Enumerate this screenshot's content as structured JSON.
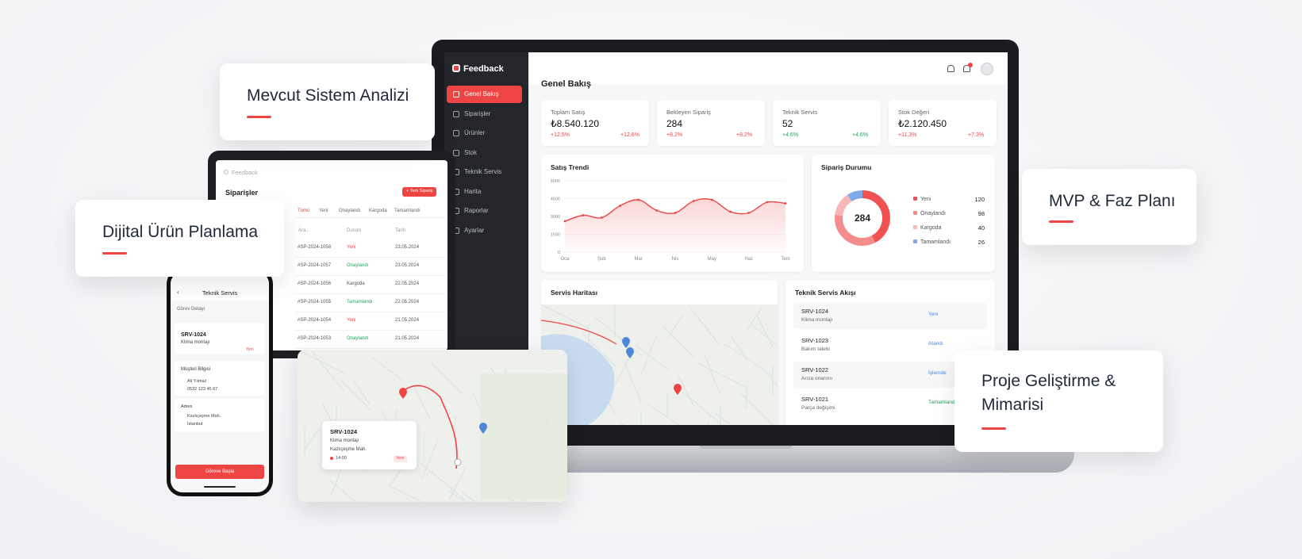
{
  "cards": [
    "Mevcut Sistem Analizi",
    "Dijital Ürün Planlama",
    "MVP & Faz Planı",
    "Proje Geliştirme & Mimarisi"
  ],
  "laptop": {
    "brand": "Feedback",
    "nav": [
      "Genel Bakış",
      "Siparişler",
      "Ürünler",
      "Stok",
      "Teknik Servis",
      "Harita",
      "Raporlar",
      "Ayarlar"
    ],
    "page_title": "Genel Bakış",
    "kpis": [
      {
        "label": "Toplam Satış",
        "value": "₺8.540.120",
        "change": "+12.5%",
        "change_right": "+12.6%",
        "color": "#ef4444"
      },
      {
        "label": "Bekleyen Sipariş",
        "value": "284",
        "change": "+8.2%",
        "change_right": "+8.2%",
        "color": "#ef4444"
      },
      {
        "label": "Teknik Servis",
        "value": "52",
        "change": "+4.6%",
        "change_right": "+4.6%",
        "color": "#22a35a"
      },
      {
        "label": "Stok Değeri",
        "value": "₺2.120.450",
        "change": "+11.3%",
        "change_right": "+7.3%",
        "color": "#ef4444"
      }
    ],
    "sales_trend": {
      "type": "line",
      "title": "Satış Trendi",
      "categories": [
        "Oca",
        null,
        "Şub",
        null,
        "Mar",
        null,
        "Nis",
        null,
        "May",
        null,
        "Haz",
        null,
        "Tem"
      ],
      "values": [
        2600,
        3100,
        2900,
        3900,
        4400,
        3500,
        3300,
        4300,
        4400,
        3400,
        3300,
        4200,
        4100
      ],
      "color": "#ef4444",
      "ylim": [
        0,
        6000
      ],
      "yticks": [
        0,
        1500,
        3000,
        4500,
        6000
      ],
      "grid": true
    },
    "order_status": {
      "type": "pie",
      "title": "Sipariş Durumu",
      "total": 284,
      "categories": [
        "Yeni",
        "Onaylandı",
        "Kargoda",
        "Tamamlandı"
      ],
      "values": [
        120,
        98,
        40,
        26
      ],
      "colors": [
        "#f05252",
        "#f58c8c",
        "#f7b7b7",
        "#7fa9e8"
      ]
    },
    "map_title": "Servis Haritası",
    "flow_title": "Teknik Servis Akışı",
    "flow": [
      {
        "id": "SRV-1024",
        "desc": "Klima montajı",
        "status": "Yeni",
        "color": "#4f86d9"
      },
      {
        "id": "SRV-1023",
        "desc": "Bakım talebi",
        "status": "Atandı",
        "color": "#4f86d9"
      },
      {
        "id": "SRV-1022",
        "desc": "Arıza onarımı",
        "status": "İşlemde",
        "color": "#4f86d9"
      },
      {
        "id": "SRV-1021",
        "desc": "Parça değişimi",
        "status": "Tamamlandı",
        "color": "#22a35a"
      }
    ]
  },
  "tablet": {
    "brand": "Feedback",
    "title": "Siparişler",
    "button": "+ Yeni Sipariş",
    "tabs": [
      "Tümü",
      "Yeni",
      "Onaylandı",
      "Kargoda",
      "Tamamlandı"
    ],
    "search": "Ara...",
    "columns": [
      "Durum",
      "Tarih"
    ],
    "rows": [
      {
        "id": "#SP-2024-1058",
        "status": "Yeni",
        "date": "23.05.2024",
        "color": "#ef4444"
      },
      {
        "id": "#SP-2024-1057",
        "status": "Onaylandı",
        "date": "23.05.2024",
        "color": "#22a35a"
      },
      {
        "id": "#SP-2024-1056",
        "status": "Kargoda",
        "date": "22.05.2024",
        "color": "#555555"
      },
      {
        "id": "#SP-2024-1055",
        "status": "Tamamlandı",
        "date": "22.05.2024",
        "color": "#22a35a"
      },
      {
        "id": "#SP-2024-1054",
        "status": "Yeni",
        "date": "21.05.2024",
        "color": "#ef4444"
      },
      {
        "id": "#SP-2024-1053",
        "status": "Onaylandı",
        "date": "21.05.2024",
        "color": "#22a35a"
      }
    ]
  },
  "phone": {
    "title": "Teknik Servis",
    "section": "Görev Detayı",
    "task_id": "SRV-1024",
    "task_desc": "Klima montajı",
    "task_status": "Yeni",
    "customer_title": "Müşteri Bilgisi",
    "customer_name": "Ali Yılmaz",
    "customer_phone": "0532 123 45 67",
    "address_title": "Adres",
    "address_line1": "Kazlıçeşme Mah.",
    "address_line2": "İstanbul",
    "button": "Göreve Başla"
  },
  "map_card": {
    "id": "SRV-1024",
    "desc": "Klima montajı",
    "address": "Kazlıçeşme Mah.",
    "time": "14:00",
    "status": "Yeni"
  }
}
